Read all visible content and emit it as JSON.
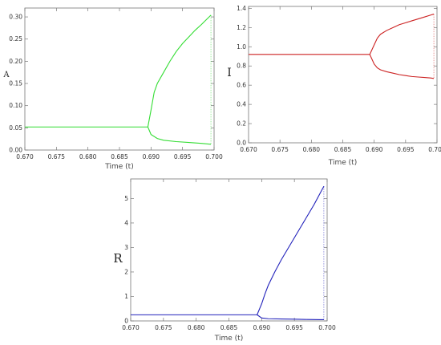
{
  "chart_data": [
    {
      "type": "line",
      "ylabel": "A",
      "xlabel": "Time (t)",
      "xlim": [
        0.67,
        0.7
      ],
      "ylim": [
        0.0,
        0.32
      ],
      "xticks": [
        "0.670",
        "0.675",
        "0.680",
        "0.685",
        "0.690",
        "0.695",
        "0.700"
      ],
      "yticks": [
        "0.00",
        "0.05",
        "0.10",
        "0.15",
        "0.20",
        "0.25",
        "0.30"
      ],
      "color": "#33dd33",
      "series": [
        {
          "x": [
            0.67,
            0.68,
            0.689,
            0.6895
          ],
          "y": [
            0.052,
            0.052,
            0.052,
            0.052
          ]
        },
        {
          "x": [
            0.6895,
            0.69,
            0.6905,
            0.691,
            0.692,
            0.693,
            0.694,
            0.695,
            0.696,
            0.697,
            0.698,
            0.699,
            0.6995
          ],
          "y": [
            0.052,
            0.09,
            0.13,
            0.15,
            0.175,
            0.2,
            0.222,
            0.24,
            0.255,
            0.27,
            0.283,
            0.297,
            0.304
          ]
        },
        {
          "x": [
            0.6895,
            0.69,
            0.691,
            0.692,
            0.694,
            0.696,
            0.698,
            0.6995
          ],
          "y": [
            0.052,
            0.035,
            0.026,
            0.022,
            0.019,
            0.017,
            0.015,
            0.013
          ]
        }
      ]
    },
    {
      "type": "line",
      "ylabel": "I",
      "xlabel": "Time (t)",
      "xlim": [
        0.67,
        0.7
      ],
      "ylim": [
        0.0,
        1.42
      ],
      "xticks": [
        "0.670",
        "0.675",
        "0.680",
        "0.685",
        "0.690",
        "0.695",
        "0.700"
      ],
      "yticks": [
        "0.0",
        "0.2",
        "0.4",
        "0.6",
        "0.8",
        "1.0",
        "1.2",
        "1.4"
      ],
      "color": "#cc2222",
      "series": [
        {
          "x": [
            0.67,
            0.68,
            0.6889,
            0.6893
          ],
          "y": [
            0.92,
            0.92,
            0.92,
            0.92
          ]
        },
        {
          "x": [
            0.6893,
            0.69,
            0.6905,
            0.691,
            0.692,
            0.693,
            0.694,
            0.695,
            0.696,
            0.697,
            0.698,
            0.699,
            0.6995
          ],
          "y": [
            0.92,
            1.02,
            1.09,
            1.13,
            1.17,
            1.2,
            1.23,
            1.25,
            1.27,
            1.29,
            1.31,
            1.33,
            1.34
          ]
        },
        {
          "x": [
            0.6893,
            0.69,
            0.6905,
            0.691,
            0.692,
            0.693,
            0.694,
            0.695,
            0.696,
            0.697,
            0.698,
            0.699,
            0.6995
          ],
          "y": [
            0.92,
            0.82,
            0.78,
            0.76,
            0.74,
            0.725,
            0.71,
            0.7,
            0.69,
            0.685,
            0.68,
            0.675,
            0.67
          ]
        }
      ]
    },
    {
      "type": "line",
      "ylabel": "R",
      "xlabel": "Time (t)",
      "xlim": [
        0.67,
        0.7
      ],
      "ylim": [
        0.0,
        5.8
      ],
      "xticks": [
        "0.670",
        "0.675",
        "0.680",
        "0.685",
        "0.690",
        "0.695",
        "0.700"
      ],
      "yticks": [
        "0",
        "1",
        "2",
        "3",
        "4",
        "5"
      ],
      "color": "#2222bb",
      "series": [
        {
          "x": [
            0.67,
            0.68,
            0.689,
            0.6893
          ],
          "y": [
            0.25,
            0.25,
            0.25,
            0.25
          ]
        },
        {
          "x": [
            0.6893,
            0.69,
            0.6905,
            0.691,
            0.692,
            0.693,
            0.694,
            0.695,
            0.696,
            0.697,
            0.698,
            0.699,
            0.6995
          ],
          "y": [
            0.25,
            0.7,
            1.1,
            1.45,
            2.0,
            2.5,
            2.95,
            3.4,
            3.85,
            4.3,
            4.75,
            5.25,
            5.5
          ]
        },
        {
          "x": [
            0.6893,
            0.69,
            0.691,
            0.693,
            0.695,
            0.697,
            0.699,
            0.6995
          ],
          "y": [
            0.25,
            0.12,
            0.09,
            0.08,
            0.07,
            0.06,
            0.05,
            0.05
          ]
        }
      ]
    }
  ]
}
